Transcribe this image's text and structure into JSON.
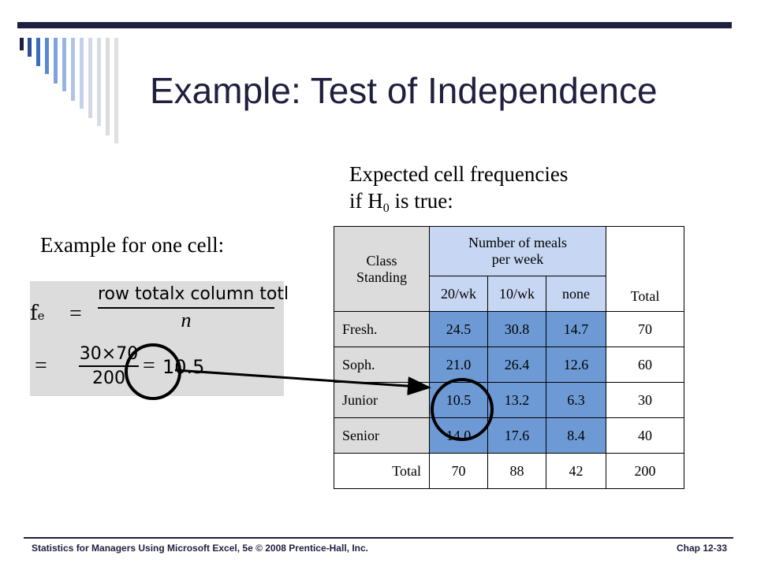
{
  "slide": {
    "title": "Example: Test of Independence",
    "expected_line1": "Expected cell frequencies",
    "expected_line2_prefix": "if H",
    "expected_line2_sub": "0",
    "expected_line2_suffix": " is true:",
    "one_cell_label": "Example for one cell:"
  },
  "formula": {
    "lhs_f": "f",
    "lhs_sub": "e",
    "eq": "=",
    "numerator": "row totalx column totl",
    "denominator": "n",
    "frac2_num": "30×70",
    "frac2_den": "200",
    "result": "10.5"
  },
  "table": {
    "class_standing": "Class\nStanding",
    "meals_header": "Number of meals\nper week",
    "cols": [
      "20/wk",
      "10/wk",
      "none"
    ],
    "total_header": "Total",
    "rows": [
      {
        "label": "Fresh.",
        "values": [
          "24.5",
          "30.8",
          "14.7"
        ],
        "total": "70"
      },
      {
        "label": "Soph.",
        "values": [
          "21.0",
          "26.4",
          "12.6"
        ],
        "total": "60"
      },
      {
        "label": "Junior",
        "values": [
          "10.5",
          "13.2",
          "6.3"
        ],
        "total": "30"
      },
      {
        "label": "Senior",
        "values": [
          "14.0",
          "17.6",
          "8.4"
        ],
        "total": "40"
      }
    ],
    "totals_row": {
      "label": "Total",
      "values": [
        "70",
        "88",
        "42"
      ],
      "total": "200"
    }
  },
  "footer": {
    "left": "Statistics for Managers Using Microsoft Excel, 5e © 2008 Prentice-Hall, Inc.",
    "right": "Chap 12-33"
  },
  "colors": {
    "navy": "#1f1f3f",
    "highlight_blue": "#6d9ad4",
    "light_blue": "#c7d7f3",
    "gray": "#dcdcdc"
  }
}
